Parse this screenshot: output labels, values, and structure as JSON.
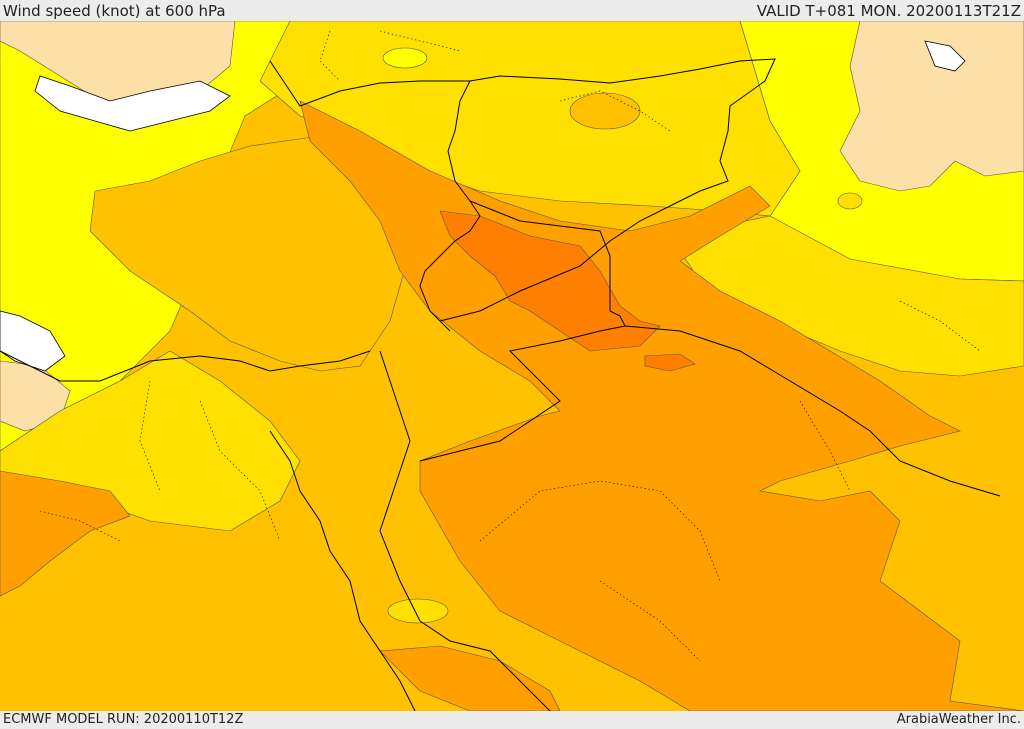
{
  "header": {
    "title": "Wind speed (knot) at 600 hPa",
    "valid": "VALID T+081 MON. 20200113T21Z"
  },
  "footer": {
    "model_run": "ECMWF MODEL RUN: 20200110T12Z",
    "credit": "ArabiaWeather Inc."
  },
  "map": {
    "colors": {
      "light": "#fddfa8",
      "yellow": "#ffff00",
      "gold": "#ffe000",
      "amber": "#ffc100",
      "orange": "#ffa000",
      "deep_orange": "#ff8000",
      "boundary": "#000000",
      "contour": "#555555"
    }
  }
}
